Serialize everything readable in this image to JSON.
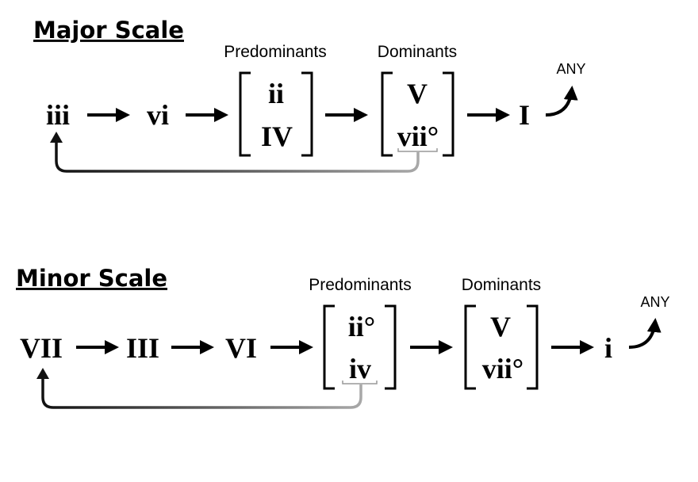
{
  "major": {
    "title": "Major Scale",
    "predominants_label": "Predominants",
    "dominants_label": "Dominants",
    "any_label": "ANY",
    "chords": {
      "iii": "iii",
      "vi": "vi",
      "pre1": "ii",
      "pre2": "IV",
      "dom1": "V",
      "dom2": "vii°",
      "tonic": "I"
    }
  },
  "minor": {
    "title": "Minor Scale",
    "predominants_label": "Predominants",
    "dominants_label": "Dominants",
    "any_label": "ANY",
    "chords": {
      "VII": "VII",
      "III": "III",
      "VI": "VI",
      "pre1": "ii°",
      "pre2": "iv",
      "dom1": "V",
      "dom2": "vii°",
      "tonic": "i"
    }
  },
  "colors": {
    "ink": "#000000",
    "loop_start": "#1a1a1a",
    "loop_end": "#aaaaaa"
  }
}
